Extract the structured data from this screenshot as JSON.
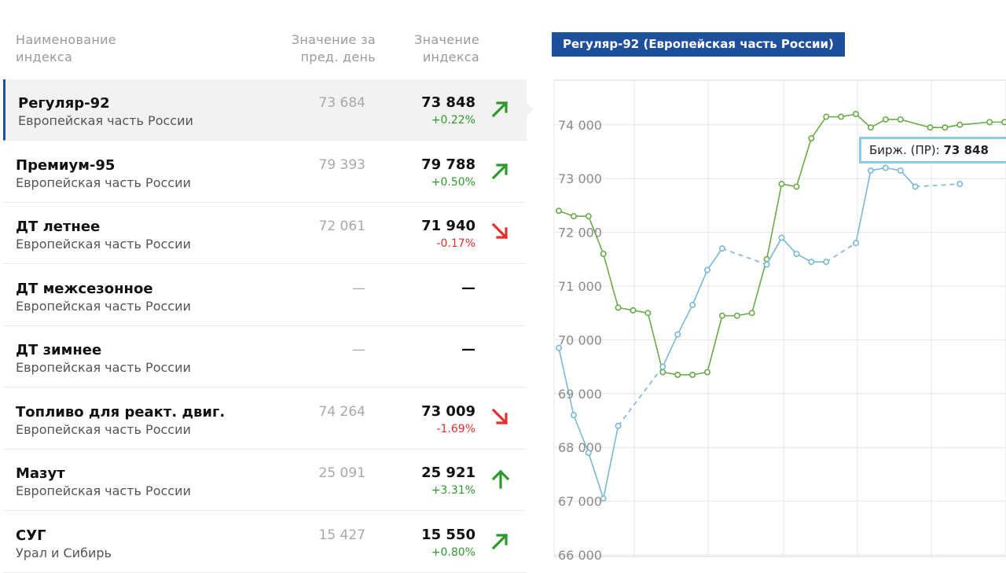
{
  "table": {
    "headers": {
      "name": "Наименование индекса",
      "prev": "Значение за пред. день",
      "current": "Значение индекса"
    },
    "rows": [
      {
        "name": "Регуляр-92",
        "region": "Европейская часть России",
        "prev": "73 684",
        "value": "73 848",
        "change": "+0.22%",
        "trend": "up-diag",
        "active": true
      },
      {
        "name": "Премиум-95",
        "region": "Европейская часть России",
        "prev": "79 393",
        "value": "79 788",
        "change": "+0.50%",
        "trend": "up-diag",
        "active": false
      },
      {
        "name": "ДТ летнее",
        "region": "Европейская часть России",
        "prev": "72 061",
        "value": "71 940",
        "change": "-0.17%",
        "trend": "down-diag",
        "active": false
      },
      {
        "name": "ДТ межсезонное",
        "region": "Европейская часть России",
        "prev": "—",
        "value": "—",
        "change": "",
        "trend": "none",
        "active": false
      },
      {
        "name": "ДТ зимнее",
        "region": "Европейская часть России",
        "prev": "—",
        "value": "—",
        "change": "",
        "trend": "none",
        "active": false
      },
      {
        "name": "Топливо для реакт. двиг.",
        "region": "Европейская часть России",
        "prev": "74 264",
        "value": "73 009",
        "change": "-1.69%",
        "trend": "down-diag",
        "active": false
      },
      {
        "name": "Мазут",
        "region": "Европейская часть России",
        "prev": "25 091",
        "value": "25 921",
        "change": "+3.31%",
        "trend": "up",
        "active": false
      },
      {
        "name": "СУГ",
        "region": "Урал и Сибирь",
        "prev": "15 427",
        "value": "15 550",
        "change": "+0.80%",
        "trend": "up-diag",
        "active": false
      }
    ]
  },
  "colors": {
    "accent": "#1e4f9c",
    "up": "#2e9a2e",
    "down": "#e03030",
    "series_green": "#6aaa4a",
    "series_blue": "#7ab8d6",
    "tooltip_border": "#8ccbe6",
    "grid": "#e6e6e6"
  },
  "chart_data": {
    "type": "line",
    "title": "Регуляр-92 (Европейская часть России)",
    "ylim": [
      66000,
      75000
    ],
    "yticks": [
      "74 000",
      "73 000",
      "72 000",
      "71 000",
      "70 000",
      "69 000",
      "68 000",
      "67 000",
      "66 000"
    ],
    "ytick_values": [
      74000,
      73000,
      72000,
      71000,
      70000,
      69000,
      68000,
      67000,
      66000
    ],
    "grid": true,
    "series": [
      {
        "key": "green",
        "values": [
          72400,
          72300,
          72300,
          71600,
          70600,
          70550,
          70500,
          69400,
          69350,
          69350,
          69400,
          70450,
          70450,
          70500,
          71500,
          72900,
          72850,
          73750,
          74150,
          74150,
          74200,
          73950,
          74100,
          74100,
          null,
          73950,
          73950,
          74000,
          null,
          74050,
          74050
        ],
        "gaps_dashed": false
      },
      {
        "key": "blue",
        "values": [
          69850,
          68600,
          67900,
          67050,
          68400,
          null,
          null,
          69500,
          70100,
          70650,
          71300,
          71700,
          null,
          null,
          71400,
          71900,
          71600,
          71450,
          71450,
          null,
          71800,
          73150,
          73200,
          73150,
          72850,
          null,
          null,
          72900,
          null,
          null,
          null
        ],
        "gaps_dashed": true
      }
    ],
    "tooltip": {
      "label": "Бирж. (ПР):",
      "value": "73 848"
    }
  }
}
